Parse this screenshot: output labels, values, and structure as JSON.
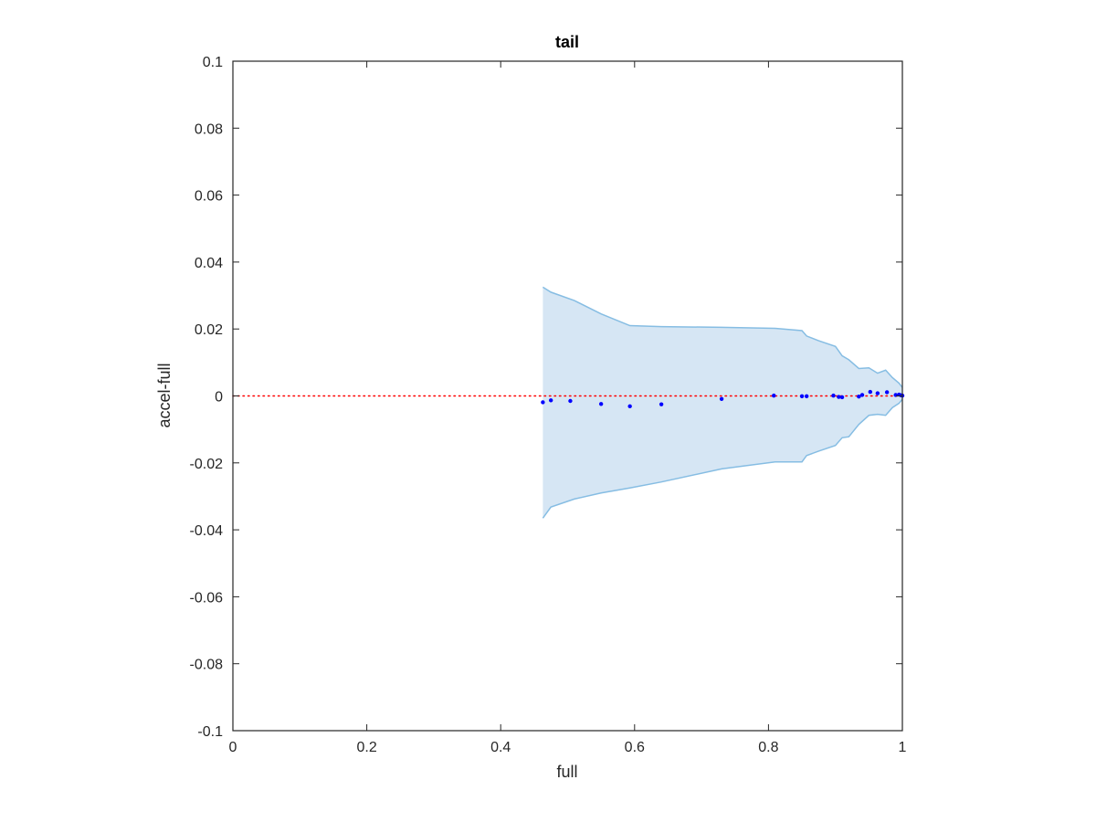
{
  "chart_data": {
    "type": "scatter",
    "title": "tail",
    "xlabel": "full",
    "ylabel": "accel-full",
    "xlim": [
      0,
      1
    ],
    "ylim": [
      -0.1,
      0.1
    ],
    "x_ticks": [
      0,
      0.2,
      0.4,
      0.6,
      0.8,
      1
    ],
    "x_tick_labels": [
      "0",
      "0.2",
      "0.4",
      "0.6",
      "0.8",
      "1"
    ],
    "y_ticks": [
      0.1,
      0.08,
      0.06,
      0.04,
      0.02,
      0,
      -0.02,
      -0.04,
      -0.06,
      -0.08,
      -0.1
    ],
    "y_tick_labels": [
      "0.1",
      "0.08",
      "0.06",
      "0.04",
      "0.02",
      "0",
      "-0.02",
      "-0.04",
      "-0.06",
      "-0.08",
      "-0.1"
    ],
    "grid": false,
    "reference_line": {
      "y": 0,
      "style": "dotted",
      "color": "#ff0000"
    },
    "band": {
      "fill_color": "#d6e6f4",
      "edge_color": "#86bde3",
      "upper": [
        [
          0.463,
          0.0325
        ],
        [
          0.475,
          0.031
        ],
        [
          0.51,
          0.0285
        ],
        [
          0.55,
          0.0245
        ],
        [
          0.593,
          0.021
        ],
        [
          0.64,
          0.0207
        ],
        [
          0.73,
          0.0205
        ],
        [
          0.81,
          0.0202
        ],
        [
          0.85,
          0.0195
        ],
        [
          0.857,
          0.0179
        ],
        [
          0.875,
          0.0165
        ],
        [
          0.9,
          0.0148
        ],
        [
          0.91,
          0.012
        ],
        [
          0.92,
          0.0108
        ],
        [
          0.935,
          0.0082
        ],
        [
          0.95,
          0.0084
        ],
        [
          0.963,
          0.0068
        ],
        [
          0.975,
          0.0077
        ],
        [
          0.985,
          0.0055
        ],
        [
          0.995,
          0.0038
        ],
        [
          1.0,
          0.0025
        ]
      ],
      "lower": [
        [
          0.463,
          -0.0365
        ],
        [
          0.475,
          -0.0332
        ],
        [
          0.51,
          -0.0308
        ],
        [
          0.55,
          -0.029
        ],
        [
          0.593,
          -0.0275
        ],
        [
          0.64,
          -0.0257
        ],
        [
          0.73,
          -0.0218
        ],
        [
          0.81,
          -0.0197
        ],
        [
          0.85,
          -0.0197
        ],
        [
          0.857,
          -0.0178
        ],
        [
          0.875,
          -0.0165
        ],
        [
          0.9,
          -0.0148
        ],
        [
          0.91,
          -0.0125
        ],
        [
          0.92,
          -0.0122
        ],
        [
          0.935,
          -0.0085
        ],
        [
          0.95,
          -0.0058
        ],
        [
          0.963,
          -0.0055
        ],
        [
          0.975,
          -0.0058
        ],
        [
          0.985,
          -0.0035
        ],
        [
          0.995,
          -0.0022
        ],
        [
          1.0,
          -0.001
        ]
      ]
    },
    "series": [
      {
        "color": "#0000ff",
        "points": [
          [
            0.463,
            -0.0019
          ],
          [
            0.475,
            -0.0013
          ],
          [
            0.504,
            -0.0015
          ],
          [
            0.55,
            -0.0024
          ],
          [
            0.593,
            -0.0031
          ],
          [
            0.64,
            -0.0025
          ],
          [
            0.73,
            -0.0009
          ],
          [
            0.808,
            0.0001
          ],
          [
            0.85,
            -0.0001
          ],
          [
            0.857,
            -0.0001
          ],
          [
            0.897,
            0.0001
          ],
          [
            0.905,
            -0.0003
          ],
          [
            0.91,
            -0.0004
          ],
          [
            0.935,
            -0.0002
          ],
          [
            0.94,
            0.0003
          ],
          [
            0.952,
            0.0012
          ],
          [
            0.963,
            0.0008
          ],
          [
            0.977,
            0.0011
          ],
          [
            0.99,
            0.0003
          ],
          [
            0.995,
            0.0004
          ],
          [
            0.998,
            0.0002
          ],
          [
            1.0,
            0.0001
          ]
        ]
      }
    ]
  }
}
